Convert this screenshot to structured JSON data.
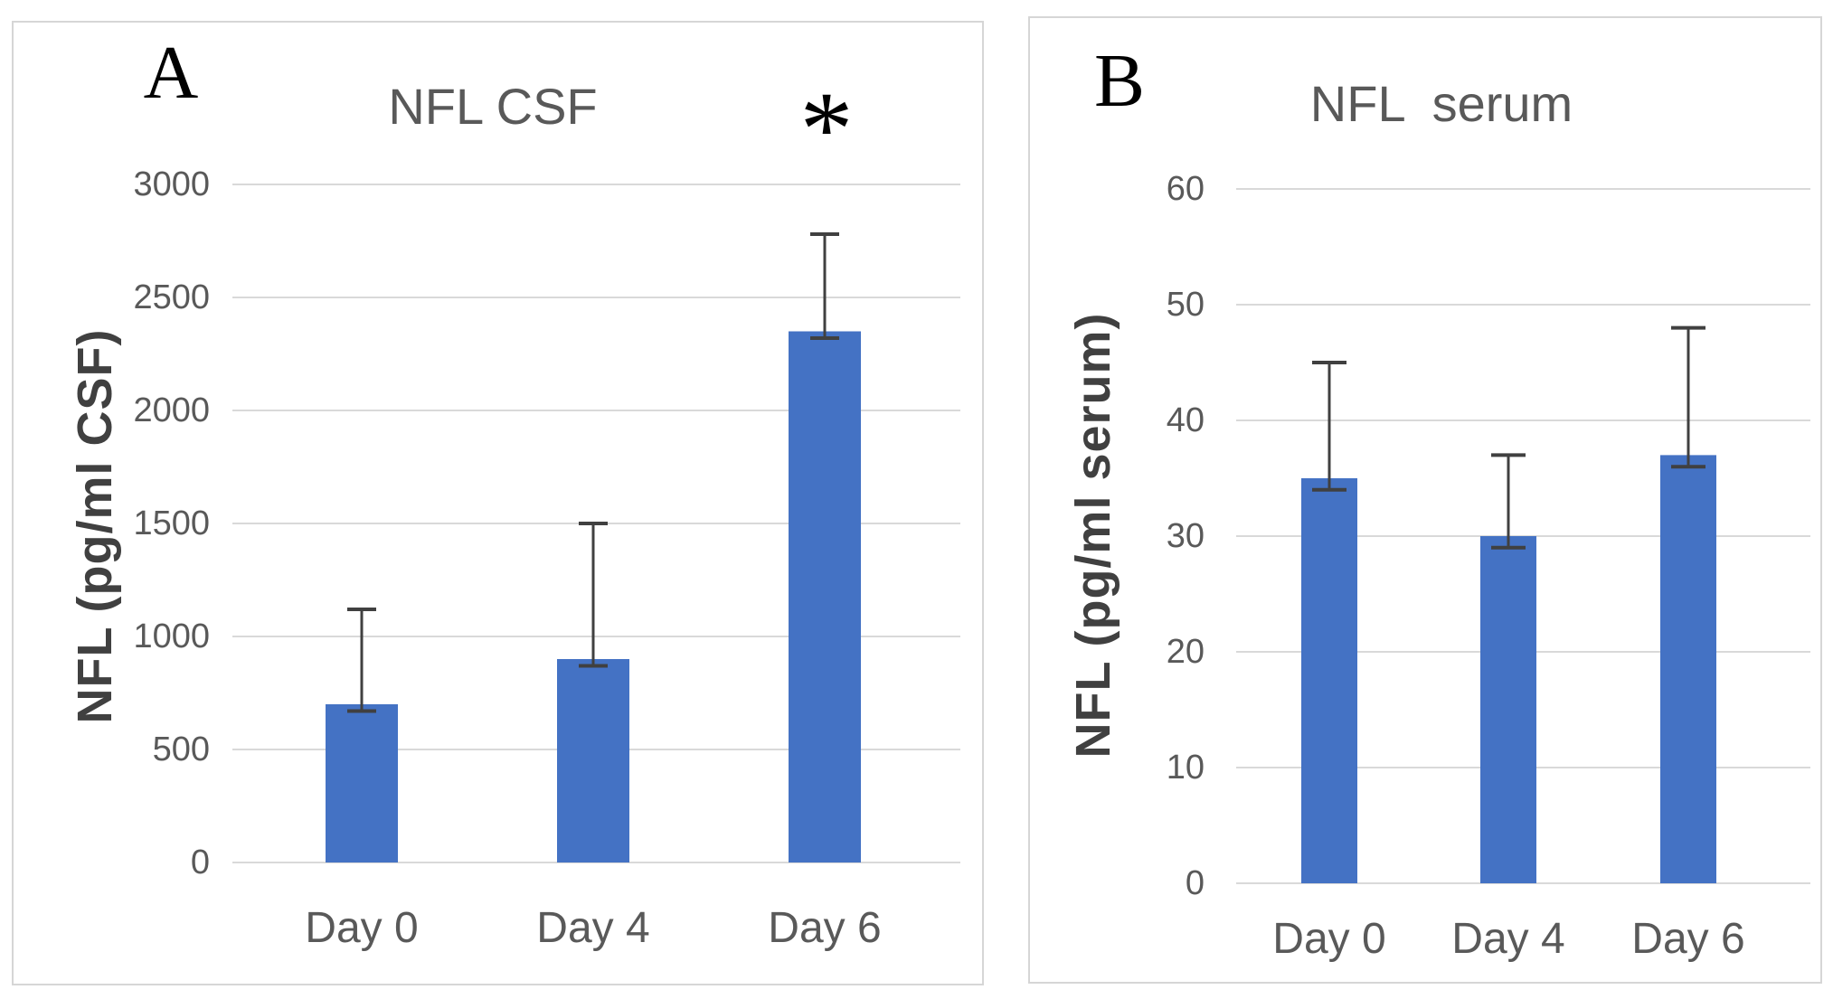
{
  "figure": {
    "description": "Two-panel bar chart figure comparing NFL levels in CSF and serum at Day 0, Day 4 and Day 6",
    "colors": {
      "bar_fill": "#4472C4",
      "gridline": "#D9D9D9",
      "panel_border": "#D6D6D6",
      "tick_label": "#595959",
      "chart_title": "#595959",
      "axis_title": "#404040",
      "error_bar": "#404040",
      "panel_letter": "#000000",
      "annotation": "#000000"
    }
  },
  "chart_data": [
    {
      "type": "bar",
      "panel_label": "A",
      "title": "NFL CSF",
      "categories": [
        "Day 0",
        "Day 4",
        "Day 6"
      ],
      "values": [
        700,
        900,
        2350
      ],
      "error_plus": [
        420,
        600,
        430
      ],
      "error_minus": [
        30,
        30,
        30
      ],
      "annotation": {
        "text": "*",
        "category": "Day 6"
      },
      "xlabel": "",
      "ylabel": "NFL (pg/ml CSF)",
      "ylim": [
        0,
        3000
      ],
      "ytick_step": 500,
      "y_tick_labels": [
        "0",
        "500",
        "1000",
        "1500",
        "2000",
        "2500",
        "3000"
      ],
      "grid": true,
      "legend": false
    },
    {
      "type": "bar",
      "panel_label": "B",
      "title": "NFL  serum",
      "categories": [
        "Day 0",
        "Day 4",
        "Day 6"
      ],
      "values": [
        35,
        30,
        37
      ],
      "error_plus": [
        10,
        7,
        11
      ],
      "error_minus": [
        1,
        1,
        1
      ],
      "annotation": null,
      "xlabel": "",
      "ylabel": "NFL (pg/ml serum)",
      "ylim": [
        0,
        60
      ],
      "ytick_step": 10,
      "y_tick_labels": [
        "0",
        "10",
        "20",
        "30",
        "40",
        "50",
        "60"
      ],
      "grid": true,
      "legend": false
    }
  ]
}
